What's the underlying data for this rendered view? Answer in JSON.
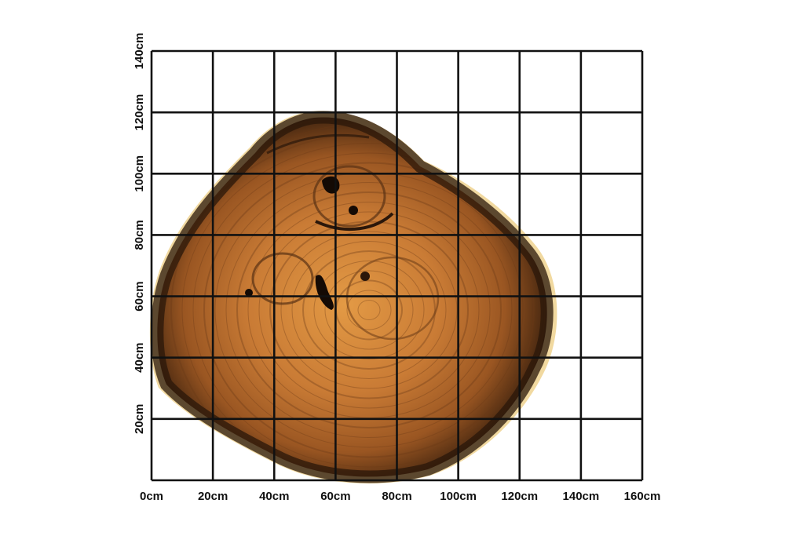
{
  "x_axis": {
    "labels": [
      "0cm",
      "20cm",
      "40cm",
      "60cm",
      "80cm",
      "100cm",
      "120cm",
      "140cm",
      "160cm"
    ]
  },
  "y_axis": {
    "labels": [
      "20cm",
      "40cm",
      "60cm",
      "80cm",
      "100cm",
      "120cm",
      "140cm"
    ]
  },
  "grid": {
    "columns": 8,
    "rows": 7,
    "cell_size_cm": 20,
    "width_cm": 160,
    "height_cm": 140
  },
  "colors": {
    "grid": "#111111",
    "wood_light": "#d98f3c",
    "wood_mid": "#b0652a",
    "wood_dark": "#3a2212",
    "sapwood": "#f1d9a0"
  }
}
